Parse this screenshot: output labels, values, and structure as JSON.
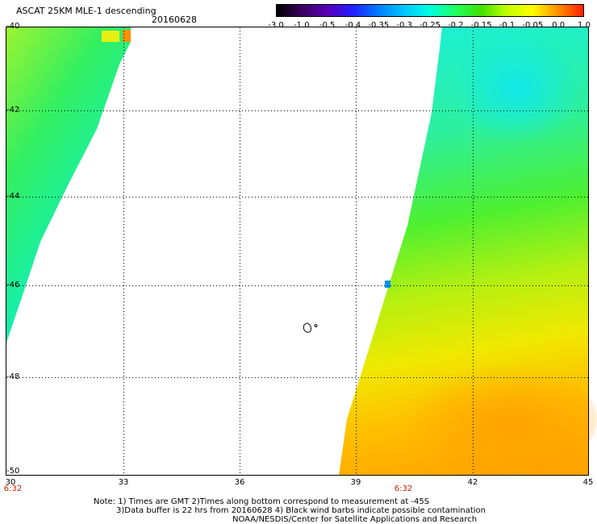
{
  "header": {
    "title": "ASCAT 25KM MLE-1 descending",
    "date": "20160628"
  },
  "colorbar": {
    "labels": [
      "-3.0",
      "-1.0",
      "-0.5",
      "-0.4",
      "-0.35",
      "-0.3",
      "-0.25",
      "-0.2",
      "-0.15",
      "-0.1",
      "-0.05",
      "0.0",
      "1.0"
    ],
    "colors": [
      "#000000",
      "#3a0060",
      "#5a00b8",
      "#2020ff",
      "#0080ff",
      "#00c8ff",
      "#00ffe0",
      "#20ff60",
      "#40e000",
      "#c0ff00",
      "#ffff00",
      "#ff9000",
      "#ff2000"
    ]
  },
  "map": {
    "lat_labels": [
      "-40",
      "-42",
      "-44",
      "-46",
      "-48",
      "-50"
    ],
    "lon_labels": [
      "30",
      "33",
      "36",
      "39",
      "42",
      "45"
    ],
    "time_labels": [
      "6:32",
      "6:32"
    ],
    "features": [
      "swath-west",
      "swath-east",
      "island"
    ]
  },
  "notes": {
    "line1": "Note: 1) Times are GMT 2)Times along bottom correspond to measurement at -45S",
    "line2": "3)Data buffer is 22 hrs from 20160628 4) Black wind barbs indicate possible contamination",
    "line3": "NOAA/NESDIS/Center for Satellite Applications and Research"
  }
}
